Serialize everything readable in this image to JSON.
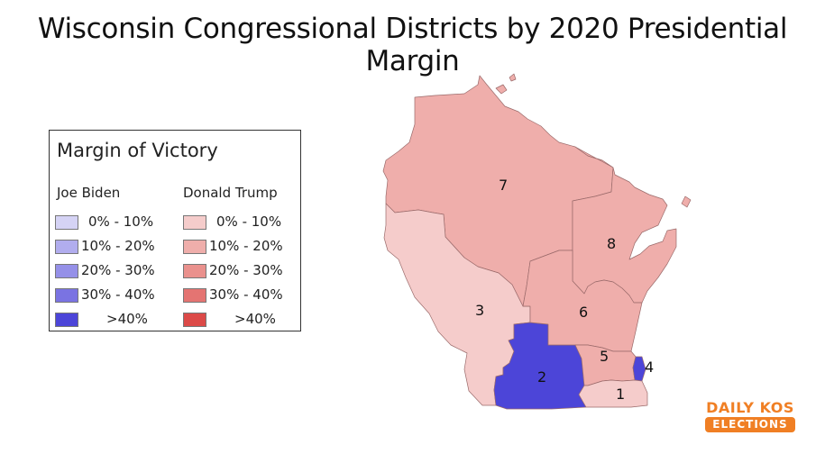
{
  "title": "Wisconsin Congressional Districts by 2020 Presidential Margin",
  "legend": {
    "title": "Margin of Victory",
    "biden_header": "Joe Biden",
    "trump_header": "Donald Trump",
    "ranges": [
      "0% - 10%",
      "10% - 20%",
      "20% - 30%",
      "30% - 40%",
      ">40%"
    ],
    "biden_colors": [
      "#d5d3f5",
      "#b1adee",
      "#9590e8",
      "#7a73e2",
      "#4c45d8"
    ],
    "trump_colors": [
      "#f5cccb",
      "#efaeab",
      "#ea918d",
      "#e47472",
      "#dc4a48"
    ]
  },
  "districts": [
    {
      "label": "1",
      "winner": "Donald Trump",
      "band": "0% - 10%",
      "color": "#f5cccb"
    },
    {
      "label": "2",
      "winner": "Joe Biden",
      "band": ">40%",
      "color": "#4c45d8"
    },
    {
      "label": "3",
      "winner": "Donald Trump",
      "band": "0% - 10%",
      "color": "#f5cccb"
    },
    {
      "label": "4",
      "winner": "Joe Biden",
      "band": ">40%",
      "color": "#4c45d8"
    },
    {
      "label": "5",
      "winner": "Donald Trump",
      "band": "10% - 20%",
      "color": "#efaeab"
    },
    {
      "label": "6",
      "winner": "Donald Trump",
      "band": "10% - 20%",
      "color": "#efaeab"
    },
    {
      "label": "7",
      "winner": "Donald Trump",
      "band": "10% - 20%",
      "color": "#efaeab"
    },
    {
      "label": "8",
      "winner": "Donald Trump",
      "band": "10% - 20%",
      "color": "#efaeab"
    }
  ],
  "logo": {
    "line1": "DAILY KOS",
    "line2": "ELECTIONS"
  }
}
